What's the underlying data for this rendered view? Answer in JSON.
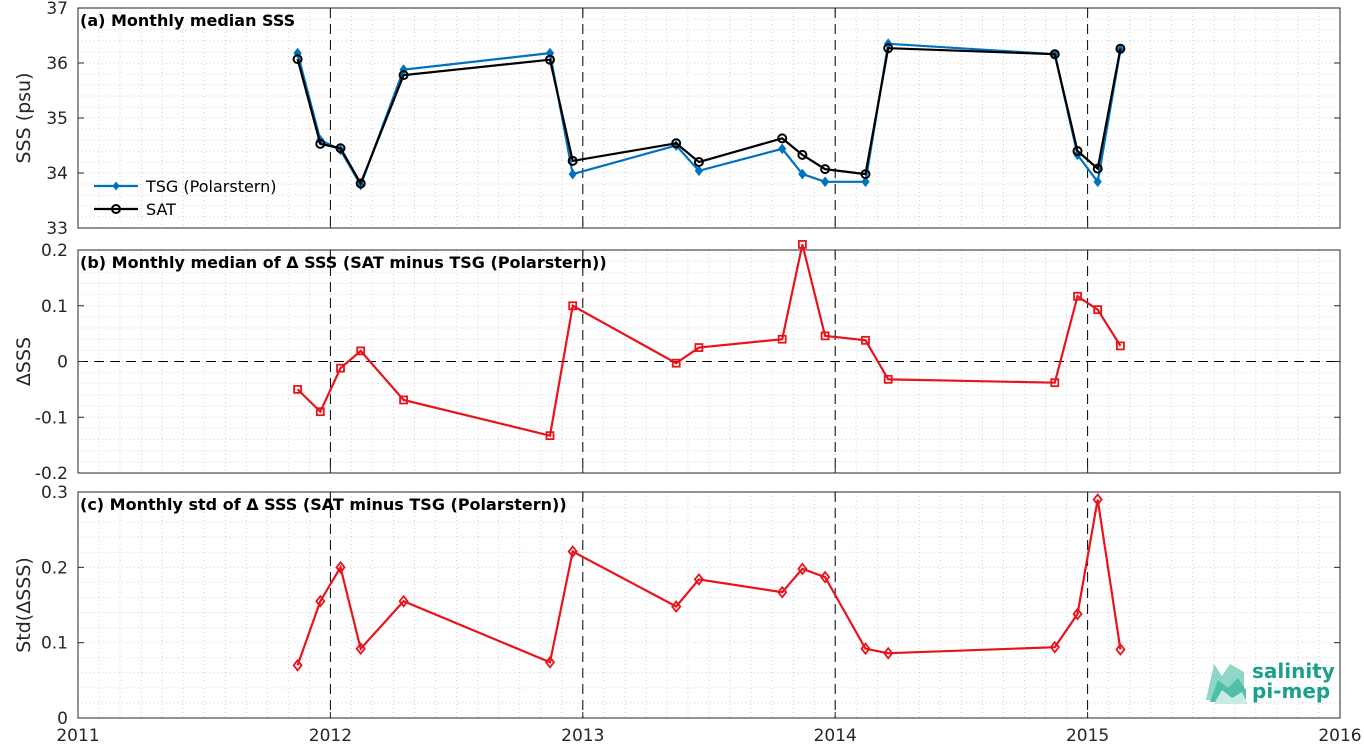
{
  "chart_data": [
    {
      "type": "line",
      "title": "(a) Monthly median SSS",
      "ylabel": "SSS (psu)",
      "xlim": [
        2011,
        2016
      ],
      "ylim": [
        33,
        37
      ],
      "xticks": [
        "2011",
        "2012",
        "2013",
        "2014",
        "2015",
        "2016"
      ],
      "yticks": [
        "33",
        "34",
        "35",
        "36",
        "37"
      ],
      "grid": true,
      "legend_position": "lower-left",
      "series": [
        {
          "name": "TSG (Polarstern)",
          "color": "#0072bd",
          "marker": "diamond",
          "x": [
            2011.87,
            2011.96,
            2012.04,
            2012.12,
            2012.29,
            2012.87,
            2012.96,
            2013.37,
            2013.46,
            2013.79,
            2013.87,
            2013.96,
            2014.12,
            2014.21,
            2014.87,
            2014.96,
            2015.04,
            2015.13
          ],
          "y": [
            36.18,
            34.6,
            34.42,
            33.78,
            35.88,
            36.18,
            33.98,
            34.5,
            34.04,
            34.44,
            33.98,
            33.84,
            33.84,
            36.35,
            36.16,
            34.33,
            33.84,
            36.24
          ]
        },
        {
          "name": "SAT",
          "color": "#000000",
          "marker": "circle",
          "x": [
            2011.87,
            2011.96,
            2012.04,
            2012.12,
            2012.29,
            2012.87,
            2012.96,
            2013.37,
            2013.46,
            2013.79,
            2013.87,
            2013.96,
            2014.12,
            2014.21,
            2014.87,
            2014.96,
            2015.04,
            2015.13
          ],
          "y": [
            36.07,
            34.53,
            34.45,
            33.81,
            35.78,
            36.06,
            34.22,
            34.54,
            34.2,
            34.63,
            34.33,
            34.07,
            33.98,
            36.27,
            36.16,
            34.4,
            34.08,
            36.26
          ]
        }
      ]
    },
    {
      "type": "line",
      "title": "(b) Monthly median of Δ SSS (SAT minus TSG (Polarstern))",
      "ylabel": "ΔSSS",
      "xlim": [
        2011,
        2016
      ],
      "ylim": [
        -0.2,
        0.2
      ],
      "xticks": [
        "2011",
        "2012",
        "2013",
        "2014",
        "2015",
        "2016"
      ],
      "yticks": [
        "-0.2",
        "-0.1",
        "0",
        "0.1",
        "0.2"
      ],
      "grid": true,
      "zero_line": true,
      "series": [
        {
          "color": "#e8141c",
          "marker": "square",
          "x": [
            2011.87,
            2011.96,
            2012.04,
            2012.12,
            2012.29,
            2012.87,
            2012.96,
            2013.37,
            2013.46,
            2013.79,
            2013.87,
            2013.96,
            2014.12,
            2014.21,
            2014.87,
            2014.96,
            2015.04,
            2015.13
          ],
          "y": [
            -0.05,
            -0.09,
            -0.012,
            0.019,
            -0.069,
            -0.133,
            0.1,
            -0.003,
            0.025,
            0.04,
            0.21,
            0.046,
            0.038,
            -0.032,
            -0.038,
            0.117,
            0.093,
            0.028
          ]
        }
      ]
    },
    {
      "type": "line",
      "title": "(c) Monthly std of Δ SSS (SAT minus TSG (Polarstern))",
      "ylabel": "Std(ΔSSS)",
      "xlim": [
        2011,
        2016
      ],
      "ylim": [
        0,
        0.3
      ],
      "xticks": [
        "2011",
        "2012",
        "2013",
        "2014",
        "2015",
        "2016"
      ],
      "yticks": [
        "0",
        "0.1",
        "0.2",
        "0.3"
      ],
      "grid": true,
      "series": [
        {
          "color": "#e8141c",
          "marker": "diamond-open",
          "x": [
            2011.87,
            2011.96,
            2012.04,
            2012.12,
            2012.29,
            2012.87,
            2012.96,
            2013.37,
            2013.46,
            2013.79,
            2013.87,
            2013.96,
            2014.12,
            2014.21,
            2014.87,
            2014.96,
            2015.04,
            2015.13
          ],
          "y": [
            0.07,
            0.155,
            0.2,
            0.092,
            0.155,
            0.074,
            0.221,
            0.148,
            0.184,
            0.167,
            0.198,
            0.187,
            0.092,
            0.086,
            0.094,
            0.138,
            0.29,
            0.091
          ]
        }
      ]
    }
  ],
  "logo": {
    "line1": "salinity",
    "line2": "pi-mep",
    "color": "#1aa08c"
  }
}
